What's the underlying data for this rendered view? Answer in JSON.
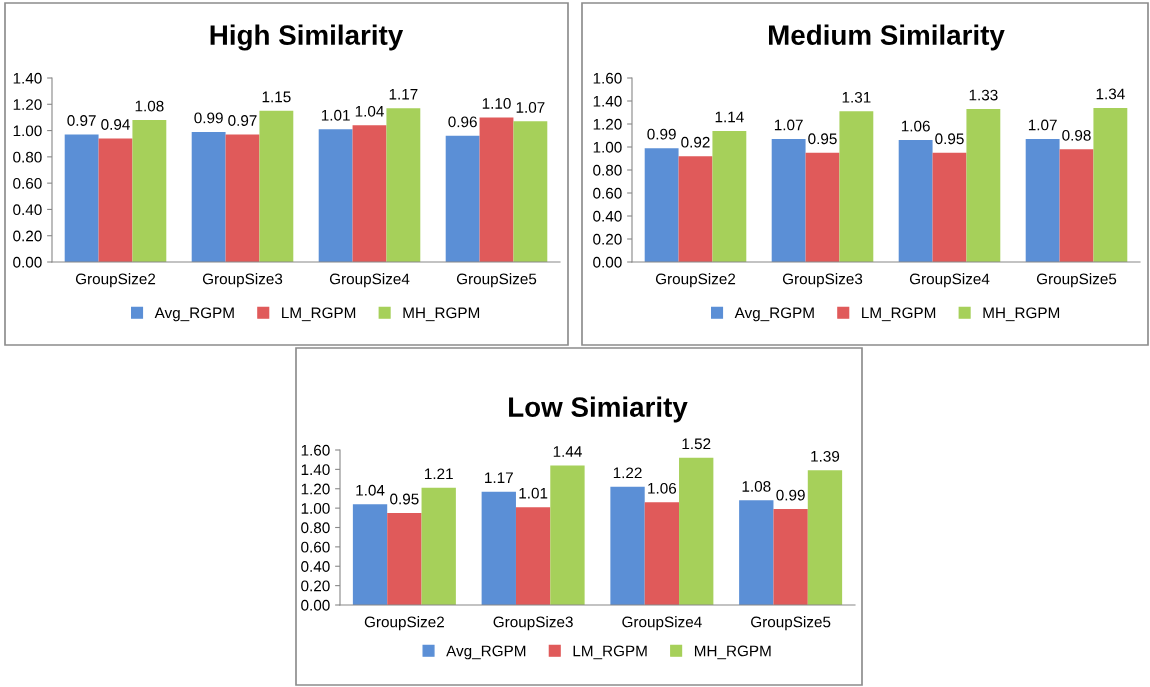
{
  "chart_data": [
    {
      "type": "bar",
      "title": "High Similarity",
      "categories": [
        "GroupSize2",
        "GroupSize3",
        "GroupSize4",
        "GroupSize5"
      ],
      "series": [
        {
          "name": "Avg_RGPM",
          "color": "#5b8fd6",
          "values": [
            0.97,
            0.99,
            1.01,
            0.96
          ],
          "value_labels": [
            "0.97",
            "0.99",
            "1.01",
            "0.96"
          ]
        },
        {
          "name": "LM_RGPM",
          "color": "#e05a5a",
          "values": [
            0.94,
            0.97,
            1.04,
            1.1
          ],
          "value_labels": [
            "0.94",
            "0.97",
            "1.04",
            "1.10"
          ]
        },
        {
          "name": "MH_RGPM",
          "color": "#a6d05a",
          "values": [
            1.08,
            1.15,
            1.17,
            1.07
          ],
          "value_labels": [
            "1.08",
            "1.15",
            "1.17",
            "1.07"
          ]
        }
      ],
      "ylim": [
        0,
        1.4
      ],
      "yticks": [
        {
          "value": 0,
          "label": "0.00"
        },
        {
          "value": 0.2,
          "label": "0.20"
        },
        {
          "value": 0.4,
          "label": "0.40"
        },
        {
          "value": 0.6,
          "label": "0.60"
        },
        {
          "value": 0.8,
          "label": "0.80"
        },
        {
          "value": 1.0,
          "label": "1.00"
        },
        {
          "value": 1.2,
          "label": "1.20"
        },
        {
          "value": 1.4,
          "label": "1.40"
        }
      ],
      "grid": false,
      "legend": "bottom"
    },
    {
      "type": "bar",
      "title": "Medium Similarity",
      "categories": [
        "GroupSize2",
        "GroupSize3",
        "GroupSize4",
        "GroupSize5"
      ],
      "series": [
        {
          "name": "Avg_RGPM",
          "color": "#5b8fd6",
          "values": [
            0.99,
            1.07,
            1.06,
            1.07
          ],
          "value_labels": [
            "0.99",
            "1.07",
            "1.06",
            "1.07"
          ]
        },
        {
          "name": "LM_RGPM",
          "color": "#e05a5a",
          "values": [
            0.92,
            0.95,
            0.95,
            0.98
          ],
          "value_labels": [
            "0.92",
            "0.95",
            "0.95",
            "0.98"
          ]
        },
        {
          "name": "MH_RGPM",
          "color": "#a6d05a",
          "values": [
            1.14,
            1.31,
            1.33,
            1.34
          ],
          "value_labels": [
            "1.14",
            "1.31",
            "1.33",
            "1.34"
          ]
        }
      ],
      "ylim": [
        0,
        1.6
      ],
      "yticks": [
        {
          "value": 0,
          "label": "0.00"
        },
        {
          "value": 0.2,
          "label": "0.20"
        },
        {
          "value": 0.4,
          "label": "0.40"
        },
        {
          "value": 0.6,
          "label": "0.60"
        },
        {
          "value": 0.8,
          "label": "0.80"
        },
        {
          "value": 1.0,
          "label": "1.00"
        },
        {
          "value": 1.2,
          "label": "1.20"
        },
        {
          "value": 1.4,
          "label": "1.40"
        },
        {
          "value": 1.6,
          "label": "1.60"
        }
      ],
      "grid": false,
      "legend": "bottom"
    },
    {
      "type": "bar",
      "title": "Low Simiarity",
      "categories": [
        "GroupSize2",
        "GroupSize3",
        "GroupSize4",
        "GroupSize5"
      ],
      "series": [
        {
          "name": "Avg_RGPM",
          "color": "#5b8fd6",
          "values": [
            1.04,
            1.17,
            1.22,
            1.08
          ],
          "value_labels": [
            "1.04",
            "1.17",
            "1.22",
            "1.08"
          ]
        },
        {
          "name": "LM_RGPM",
          "color": "#e05a5a",
          "values": [
            0.95,
            1.01,
            1.06,
            0.99
          ],
          "value_labels": [
            "0.95",
            "1.01",
            "1.06",
            "0.99"
          ]
        },
        {
          "name": "MH_RGPM",
          "color": "#a6d05a",
          "values": [
            1.21,
            1.44,
            1.52,
            1.39
          ],
          "value_labels": [
            "1.21",
            "1.44",
            "1.52",
            "1.39"
          ]
        }
      ],
      "ylim": [
        0,
        1.6
      ],
      "yticks": [
        {
          "value": 0,
          "label": "0.00"
        },
        {
          "value": 0.2,
          "label": "0.20"
        },
        {
          "value": 0.4,
          "label": "0.40"
        },
        {
          "value": 0.6,
          "label": "0.60"
        },
        {
          "value": 0.8,
          "label": "0.80"
        },
        {
          "value": 1.0,
          "label": "1.00"
        },
        {
          "value": 1.2,
          "label": "1.20"
        },
        {
          "value": 1.4,
          "label": "1.40"
        },
        {
          "value": 1.6,
          "label": "1.60"
        }
      ],
      "grid": false,
      "legend": "bottom"
    }
  ]
}
